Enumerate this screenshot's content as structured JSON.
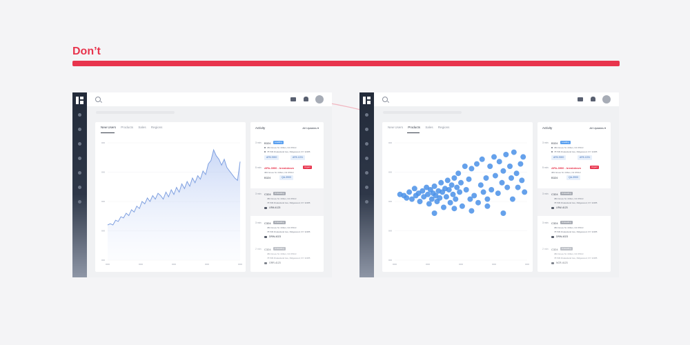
{
  "header": {
    "title": "Don’t",
    "accent": "#e8344d"
  },
  "left": {
    "tabs": [
      {
        "label": "New Users",
        "active": true
      },
      {
        "label": "Products",
        "active": false
      },
      {
        "label": "Sales",
        "active": false
      },
      {
        "label": "Regions",
        "active": false
      }
    ],
    "activity": {
      "title": "Activity",
      "filter": "All Updates",
      "items": [
        {
          "time": "3 min",
          "code": "B324",
          "badge": "Loading",
          "badge_color": "#5aa0f0",
          "addr1": "384 Grove St. Clifton, NJ 07013",
          "addr2": "78 539 Drakesland Ave, Ridgewood, NY 11385",
          "chips": [
            "APA 3900",
            "APA 1231"
          ]
        },
        {
          "time": "5 min",
          "title": "APA-3900 - breakdown",
          "badge": "Urgent",
          "badge_color": "#e8344d",
          "addr1": "384 Grove St. Clifton, NJ 07013",
          "code": "B324",
          "chip": "QA-3900"
        },
        {
          "time": "3 min",
          "code": "C324",
          "badge": "Unloading",
          "badge_color": "#a9adb5",
          "addr1": "384 Grove St. Clifton, NJ 07013",
          "addr2": "78 539 Drakesland Ave, Ridgewood, NY 11385",
          "vehicle": "LRM-4123"
        },
        {
          "time": "3 min",
          "code": "C324",
          "badge": "Unloading",
          "badge_color": "#a9adb5",
          "addr1": "384 Grove St. Clifton, NJ 07013",
          "addr2": "78 539 Drakesland Ave, Ridgewood, NY 11385",
          "vehicle": "DRW-4023"
        },
        {
          "time": "2 min",
          "code": "C324",
          "badge": "Unloading",
          "badge_color": "#a9adb5",
          "addr1": "384 Grove St. Clifton, NJ 07013",
          "addr2": "78 539 Drakesland Ave, Ridgewood, NY 11385",
          "vehicle": "GRR-4123"
        }
      ]
    }
  },
  "right": {
    "tabs": [
      {
        "label": "New Users",
        "active": false
      },
      {
        "label": "Products",
        "active": true
      },
      {
        "label": "Sales",
        "active": false
      },
      {
        "label": "Regions",
        "active": false
      }
    ],
    "activity": {
      "title": "Activity",
      "filter": "All Updates",
      "items": [
        {
          "time": "3 min",
          "code": "B324",
          "badge": "Loading",
          "badge_color": "#5aa0f0",
          "addr1": "384 Grove St. Clifton, NJ 07013",
          "addr2": "78 539 Drakesland Ave, Ridgewood, NY 11385",
          "chips": [
            "APA 3900",
            "APA 1231"
          ]
        },
        {
          "time": "5 min",
          "title": "APA-3900 - breakdown",
          "badge": "Urgent",
          "badge_color": "#e8344d",
          "addr1": "384 Grove St. Clifton, NJ 07013",
          "code": "B324",
          "chip": "QA-3900"
        },
        {
          "time": "3 min",
          "code": "C324",
          "badge": "Unloading",
          "badge_color": "#a9adb5",
          "addr1": "384 Grove St. Clifton, NJ 07013",
          "addr2": "78 539 Drakesland Ave, Ridgewood, NY 11385",
          "vehicle": "LRW-4123"
        },
        {
          "time": "3 min",
          "code": "C324",
          "badge": "Unloading",
          "badge_color": "#a9adb5",
          "addr1": "384 Grove St. Clifton, NJ 07013",
          "addr2": "78 539 Drakesland Ave, Ridgewood, NY 11385",
          "vehicle": "DRW-4023"
        },
        {
          "time": "2 min",
          "code": "C324",
          "badge": "Unloading",
          "badge_color": "#a9adb5",
          "addr1": "384 Grove St. Clifton, NJ 07013",
          "addr2": "78 539 Drakesland Ave, Ridgewood, NY 11385",
          "vehicle": "NCR-4123"
        }
      ]
    }
  },
  "chart_data": [
    {
      "type": "area",
      "color": "#7fa0e0",
      "ylim": [
        0,
        100
      ],
      "x": [
        0,
        2,
        4,
        6,
        8,
        10,
        12,
        14,
        16,
        18,
        20,
        22,
        24,
        26,
        28,
        30,
        32,
        34,
        36,
        38,
        40,
        42,
        44,
        46,
        48,
        50,
        52,
        54,
        56,
        58,
        60,
        62,
        64,
        66,
        68,
        70,
        72,
        74,
        76,
        78,
        80,
        82,
        84,
        86,
        88,
        90,
        92,
        94,
        96,
        98,
        100
      ],
      "values": [
        30,
        31,
        30,
        34,
        33,
        37,
        36,
        40,
        38,
        43,
        41,
        46,
        44,
        50,
        48,
        53,
        50,
        55,
        52,
        57,
        55,
        52,
        58,
        54,
        60,
        56,
        62,
        58,
        65,
        61,
        67,
        63,
        70,
        66,
        72,
        69,
        76,
        73,
        82,
        85,
        94,
        89,
        86,
        81,
        86,
        79,
        76,
        73,
        70,
        68,
        84
      ]
    },
    {
      "type": "scatter",
      "color": "#4a90e8",
      "xlim": [
        0,
        100
      ],
      "ylim": [
        0,
        100
      ],
      "points": [
        [
          4,
          56
        ],
        [
          7,
          55
        ],
        [
          9,
          53
        ],
        [
          11,
          58
        ],
        [
          13,
          52
        ],
        [
          15,
          61
        ],
        [
          16,
          55
        ],
        [
          18,
          57
        ],
        [
          19,
          50
        ],
        [
          21,
          59
        ],
        [
          22,
          54
        ],
        [
          24,
          62
        ],
        [
          25,
          56
        ],
        [
          26,
          48
        ],
        [
          27,
          60
        ],
        [
          28,
          52
        ],
        [
          29,
          57
        ],
        [
          30,
          63
        ],
        [
          31,
          55
        ],
        [
          32,
          50
        ],
        [
          33,
          59
        ],
        [
          34,
          53
        ],
        [
          35,
          66
        ],
        [
          36,
          58
        ],
        [
          37,
          45
        ],
        [
          38,
          61
        ],
        [
          39,
          54
        ],
        [
          40,
          68
        ],
        [
          41,
          60
        ],
        [
          42,
          49
        ],
        [
          43,
          64
        ],
        [
          44,
          56
        ],
        [
          45,
          70
        ],
        [
          46,
          52
        ],
        [
          47,
          62
        ],
        [
          48,
          74
        ],
        [
          49,
          58
        ],
        [
          50,
          66
        ],
        [
          51,
          46
        ],
        [
          53,
          80
        ],
        [
          54,
          60
        ],
        [
          56,
          69
        ],
        [
          57,
          52
        ],
        [
          58,
          78
        ],
        [
          60,
          55
        ],
        [
          62,
          82
        ],
        [
          63,
          49
        ],
        [
          65,
          64
        ],
        [
          66,
          86
        ],
        [
          67,
          58
        ],
        [
          69,
          70
        ],
        [
          70,
          52
        ],
        [
          72,
          80
        ],
        [
          73,
          60
        ],
        [
          75,
          88
        ],
        [
          76,
          72
        ],
        [
          78,
          57
        ],
        [
          79,
          84
        ],
        [
          81,
          66
        ],
        [
          82,
          76
        ],
        [
          84,
          90
        ],
        [
          85,
          62
        ],
        [
          87,
          80
        ],
        [
          88,
          70
        ],
        [
          89,
          52
        ],
        [
          90,
          92
        ],
        [
          92,
          74
        ],
        [
          93,
          62
        ],
        [
          95,
          82
        ],
        [
          96,
          68
        ],
        [
          97,
          88
        ],
        [
          98,
          58
        ],
        [
          30,
          40
        ],
        [
          45,
          44
        ],
        [
          58,
          42
        ],
        [
          70,
          46
        ],
        [
          82,
          40
        ]
      ]
    }
  ]
}
